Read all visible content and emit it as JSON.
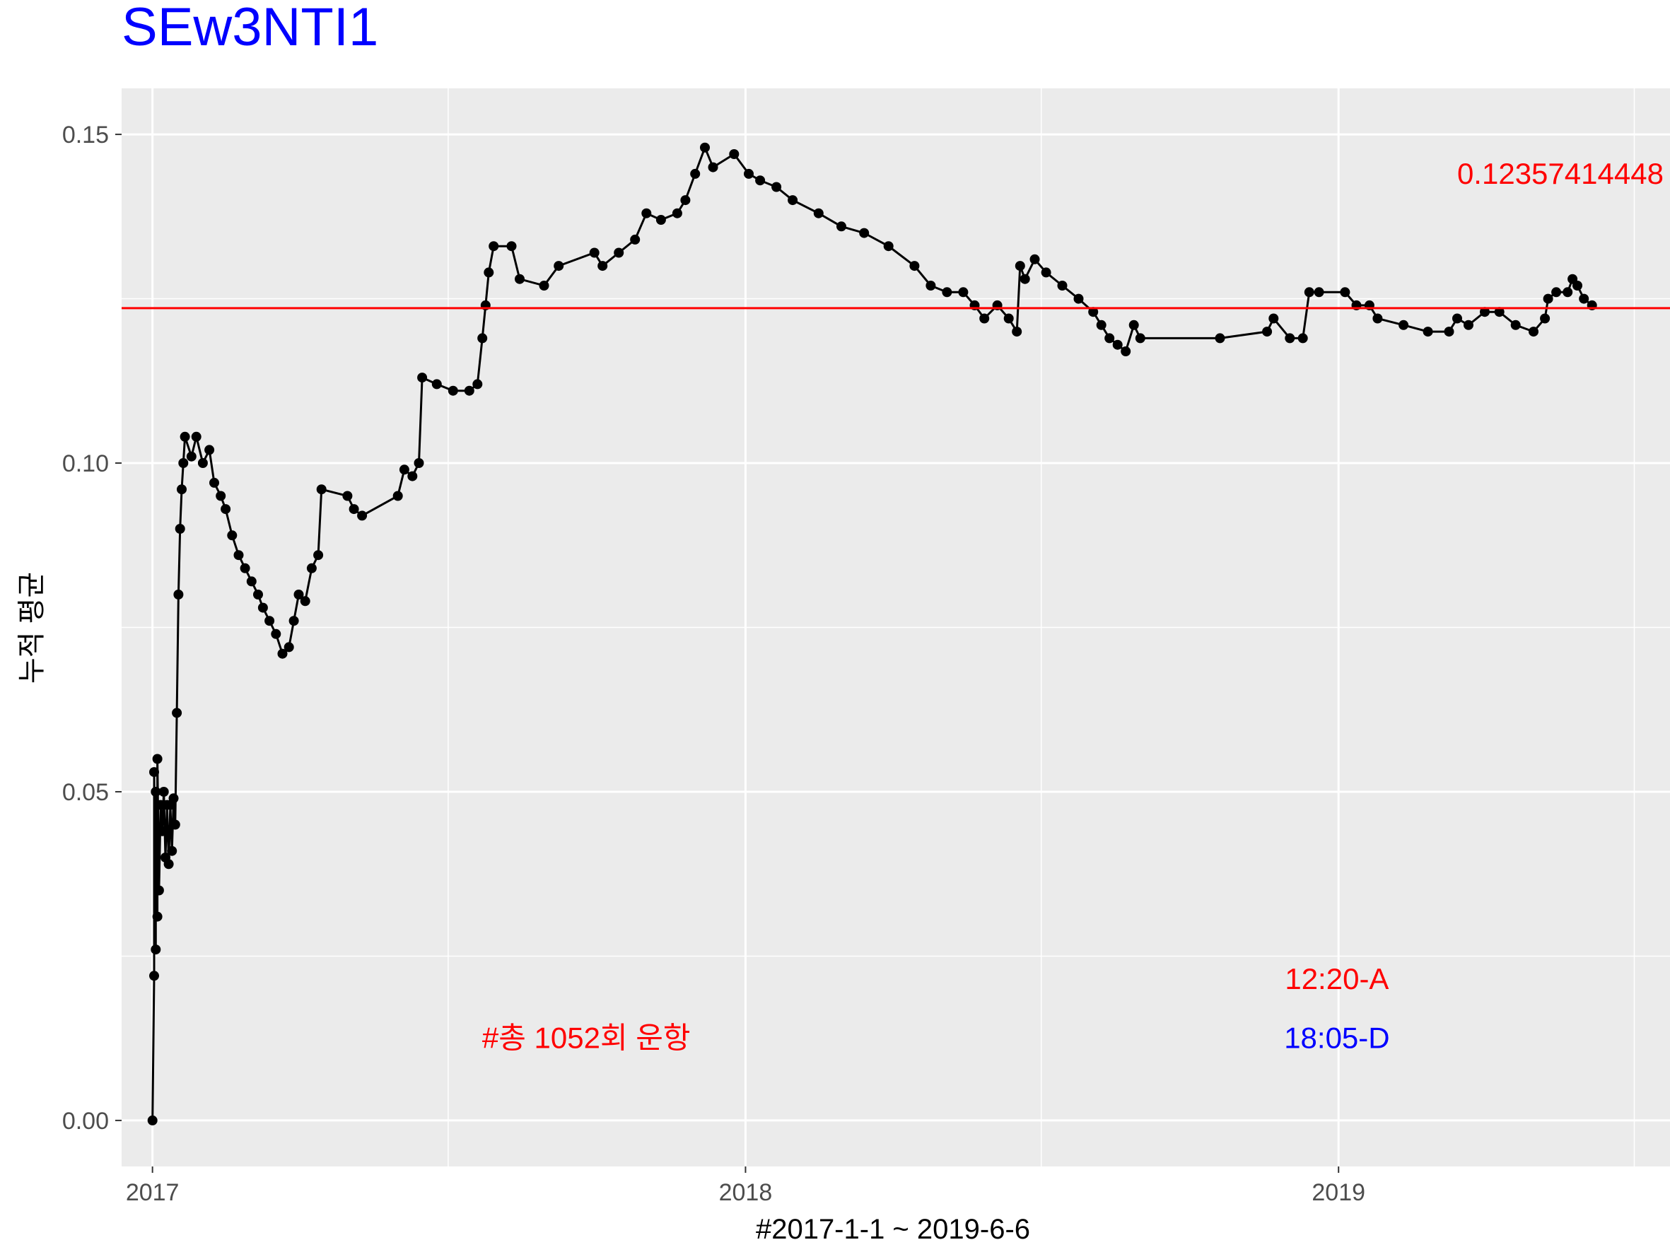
{
  "chart_data": {
    "type": "line",
    "title": "SEw3NTI1",
    "xlabel": "#2017-1-1 ~ 2019-6-6",
    "ylabel": "누적 평균",
    "x_ticks": [
      "2017",
      "2018",
      "2019"
    ],
    "y_ticks": [
      "0.00",
      "0.05",
      "0.10",
      "0.15"
    ],
    "xlim": [
      "2016-12-13",
      "2019-07-24"
    ],
    "ylim": [
      -0.007,
      0.157
    ],
    "grid": true,
    "legend": "none",
    "reference_line": {
      "value": 0.12357414448,
      "label": "0.12357414448",
      "color": "#ff0000"
    },
    "annotations": [
      {
        "text": "#총 1052회 운항",
        "color": "#ff0000",
        "x": "2017-09-25",
        "y": 0.011
      },
      {
        "text": "12:20-A",
        "color": "#ff0000",
        "x": "2018-12-31",
        "y": 0.02
      },
      {
        "text": "18:05-D",
        "color": "#0000ff",
        "x": "2018-12-31",
        "y": 0.011
      }
    ],
    "series": [
      {
        "color": "#000000",
        "points": [
          [
            "2017-01-01",
            0.0
          ],
          [
            "2017-01-02",
            0.022
          ],
          [
            "2017-01-02",
            0.053
          ],
          [
            "2017-01-03",
            0.026
          ],
          [
            "2017-01-03",
            0.05
          ],
          [
            "2017-01-04",
            0.031
          ],
          [
            "2017-01-04",
            0.055
          ],
          [
            "2017-01-05",
            0.035
          ],
          [
            "2017-01-06",
            0.048
          ],
          [
            "2017-01-07",
            0.044
          ],
          [
            "2017-01-08",
            0.05
          ],
          [
            "2017-01-09",
            0.04
          ],
          [
            "2017-01-10",
            0.048
          ],
          [
            "2017-01-11",
            0.039
          ],
          [
            "2017-01-12",
            0.048
          ],
          [
            "2017-01-13",
            0.041
          ],
          [
            "2017-01-14",
            0.049
          ],
          [
            "2017-01-15",
            0.045
          ],
          [
            "2017-01-16",
            0.062
          ],
          [
            "2017-01-17",
            0.08
          ],
          [
            "2017-01-18",
            0.09
          ],
          [
            "2017-01-19",
            0.096
          ],
          [
            "2017-01-20",
            0.1
          ],
          [
            "2017-01-21",
            0.104
          ],
          [
            "2017-01-25",
            0.101
          ],
          [
            "2017-01-28",
            0.104
          ],
          [
            "2017-02-01",
            0.1
          ],
          [
            "2017-02-05",
            0.102
          ],
          [
            "2017-02-08",
            0.097
          ],
          [
            "2017-02-12",
            0.095
          ],
          [
            "2017-02-15",
            0.093
          ],
          [
            "2017-02-19",
            0.089
          ],
          [
            "2017-02-23",
            0.086
          ],
          [
            "2017-02-27",
            0.084
          ],
          [
            "2017-03-03",
            0.082
          ],
          [
            "2017-03-07",
            0.08
          ],
          [
            "2017-03-10",
            0.078
          ],
          [
            "2017-03-14",
            0.076
          ],
          [
            "2017-03-18",
            0.074
          ],
          [
            "2017-03-22",
            0.071
          ],
          [
            "2017-03-26",
            0.072
          ],
          [
            "2017-03-29",
            0.076
          ],
          [
            "2017-04-01",
            0.08
          ],
          [
            "2017-04-05",
            0.079
          ],
          [
            "2017-04-09",
            0.084
          ],
          [
            "2017-04-13",
            0.086
          ],
          [
            "2017-04-15",
            0.096
          ],
          [
            "2017-05-01",
            0.095
          ],
          [
            "2017-05-05",
            0.093
          ],
          [
            "2017-05-10",
            0.092
          ],
          [
            "2017-06-01",
            0.095
          ],
          [
            "2017-06-05",
            0.099
          ],
          [
            "2017-06-10",
            0.098
          ],
          [
            "2017-06-14",
            0.1
          ],
          [
            "2017-06-16",
            0.113
          ],
          [
            "2017-06-25",
            0.112
          ],
          [
            "2017-07-05",
            0.111
          ],
          [
            "2017-07-15",
            0.111
          ],
          [
            "2017-07-20",
            0.112
          ],
          [
            "2017-07-23",
            0.119
          ],
          [
            "2017-07-25",
            0.124
          ],
          [
            "2017-07-27",
            0.129
          ],
          [
            "2017-07-30",
            0.133
          ],
          [
            "2017-08-10",
            0.133
          ],
          [
            "2017-08-15",
            0.128
          ],
          [
            "2017-08-30",
            0.127
          ],
          [
            "2017-09-08",
            0.13
          ],
          [
            "2017-09-30",
            0.132
          ],
          [
            "2017-10-05",
            0.13
          ],
          [
            "2017-10-15",
            0.132
          ],
          [
            "2017-10-25",
            0.134
          ],
          [
            "2017-11-01",
            0.138
          ],
          [
            "2017-11-10",
            0.137
          ],
          [
            "2017-11-20",
            0.138
          ],
          [
            "2017-11-25",
            0.14
          ],
          [
            "2017-12-01",
            0.144
          ],
          [
            "2017-12-07",
            0.148
          ],
          [
            "2017-12-12",
            0.145
          ],
          [
            "2017-12-25",
            0.147
          ],
          [
            "2018-01-03",
            0.144
          ],
          [
            "2018-01-10",
            0.143
          ],
          [
            "2018-01-20",
            0.142
          ],
          [
            "2018-01-30",
            0.14
          ],
          [
            "2018-02-15",
            0.138
          ],
          [
            "2018-03-01",
            0.136
          ],
          [
            "2018-03-15",
            0.135
          ],
          [
            "2018-03-30",
            0.133
          ],
          [
            "2018-04-15",
            0.13
          ],
          [
            "2018-04-25",
            0.127
          ],
          [
            "2018-05-05",
            0.126
          ],
          [
            "2018-05-15",
            0.126
          ],
          [
            "2018-05-22",
            0.124
          ],
          [
            "2018-05-28",
            0.122
          ],
          [
            "2018-06-05",
            0.124
          ],
          [
            "2018-06-12",
            0.122
          ],
          [
            "2018-06-17",
            0.12
          ],
          [
            "2018-06-19",
            0.13
          ],
          [
            "2018-06-22",
            0.128
          ],
          [
            "2018-06-28",
            0.131
          ],
          [
            "2018-07-05",
            0.129
          ],
          [
            "2018-07-15",
            0.127
          ],
          [
            "2018-07-25",
            0.125
          ],
          [
            "2018-08-03",
            0.123
          ],
          [
            "2018-08-08",
            0.121
          ],
          [
            "2018-08-13",
            0.119
          ],
          [
            "2018-08-18",
            0.118
          ],
          [
            "2018-08-23",
            0.117
          ],
          [
            "2018-08-28",
            0.121
          ],
          [
            "2018-09-01",
            0.119
          ],
          [
            "2018-10-20",
            0.119
          ],
          [
            "2018-11-18",
            0.12
          ],
          [
            "2018-11-22",
            0.122
          ],
          [
            "2018-12-02",
            0.119
          ],
          [
            "2018-12-10",
            0.119
          ],
          [
            "2018-12-14",
            0.126
          ],
          [
            "2018-12-20",
            0.126
          ],
          [
            "2019-01-05",
            0.126
          ],
          [
            "2019-01-12",
            0.124
          ],
          [
            "2019-01-20",
            0.124
          ],
          [
            "2019-01-25",
            0.122
          ],
          [
            "2019-02-10",
            0.121
          ],
          [
            "2019-02-25",
            0.12
          ],
          [
            "2019-03-10",
            0.12
          ],
          [
            "2019-03-15",
            0.122
          ],
          [
            "2019-03-22",
            0.121
          ],
          [
            "2019-04-01",
            0.123
          ],
          [
            "2019-04-10",
            0.123
          ],
          [
            "2019-04-20",
            0.121
          ],
          [
            "2019-05-01",
            0.12
          ],
          [
            "2019-05-08",
            0.122
          ],
          [
            "2019-05-10",
            0.125
          ],
          [
            "2019-05-15",
            0.126
          ],
          [
            "2019-05-22",
            0.126
          ],
          [
            "2019-05-25",
            0.128
          ],
          [
            "2019-05-28",
            0.127
          ],
          [
            "2019-06-01",
            0.125
          ],
          [
            "2019-06-06",
            0.124
          ]
        ]
      }
    ]
  }
}
